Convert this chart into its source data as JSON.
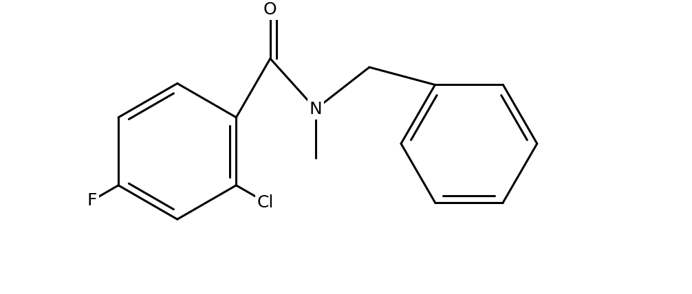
{
  "background": "#ffffff",
  "line_color": "#000000",
  "line_width": 2.2,
  "font_size": 18,
  "figsize": [
    10.06,
    4.28
  ],
  "dpi": 100,
  "xlim": [
    0.0,
    10.06
  ],
  "ylim": [
    0.0,
    4.28
  ]
}
